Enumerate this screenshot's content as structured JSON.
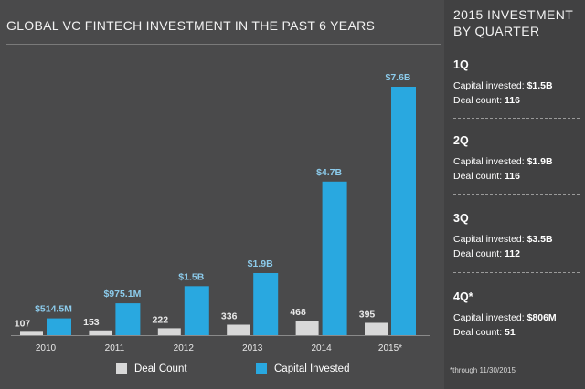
{
  "chart_data": {
    "type": "bar",
    "title": "GLOBAL VC FINTECH INVESTMENT IN THE PAST 6 YEARS",
    "categories": [
      "2010",
      "2011",
      "2012",
      "2013",
      "2014",
      "2015*"
    ],
    "series": [
      {
        "name": "Deal Count",
        "values": [
          107,
          153,
          222,
          336,
          468,
          395
        ],
        "labels": [
          "107",
          "153",
          "222",
          "336",
          "468",
          "395"
        ],
        "color": "#d8d8d8"
      },
      {
        "name": "Capital Invested",
        "values": [
          514.5,
          975.1,
          1500,
          1900,
          4700,
          7600
        ],
        "unit": "USD millions",
        "labels": [
          "$514.5M",
          "$975.1M",
          "$1.5B",
          "$1.9B",
          "$4.7B",
          "$7.6B"
        ],
        "color": "#29a8e0"
      }
    ],
    "legend_position": "bottom",
    "grid": false
  },
  "panel": {
    "title": "2015 INVESTMENT BY QUARTER",
    "quarters": [
      {
        "label": "1Q",
        "capital_label": "Capital invested:",
        "capital": "$1.5B",
        "deals_label": "Deal count:",
        "deals": "116"
      },
      {
        "label": "2Q",
        "capital_label": "Capital invested:",
        "capital": "$1.9B",
        "deals_label": "Deal count:",
        "deals": "116"
      },
      {
        "label": "3Q",
        "capital_label": "Capital invested:",
        "capital": "$3.5B",
        "deals_label": "Deal count:",
        "deals": "112"
      },
      {
        "label": "4Q*",
        "capital_label": "Capital invested:",
        "capital": "$806M",
        "deals_label": "Deal count:",
        "deals": "51"
      }
    ]
  },
  "footnote": "*through 11/30/2015",
  "colors": {
    "background": "#4a4a4b",
    "panel": "#414142",
    "accent": "#29a8e0",
    "deal": "#d8d8d8",
    "label_blue": "#8ccbeb"
  }
}
